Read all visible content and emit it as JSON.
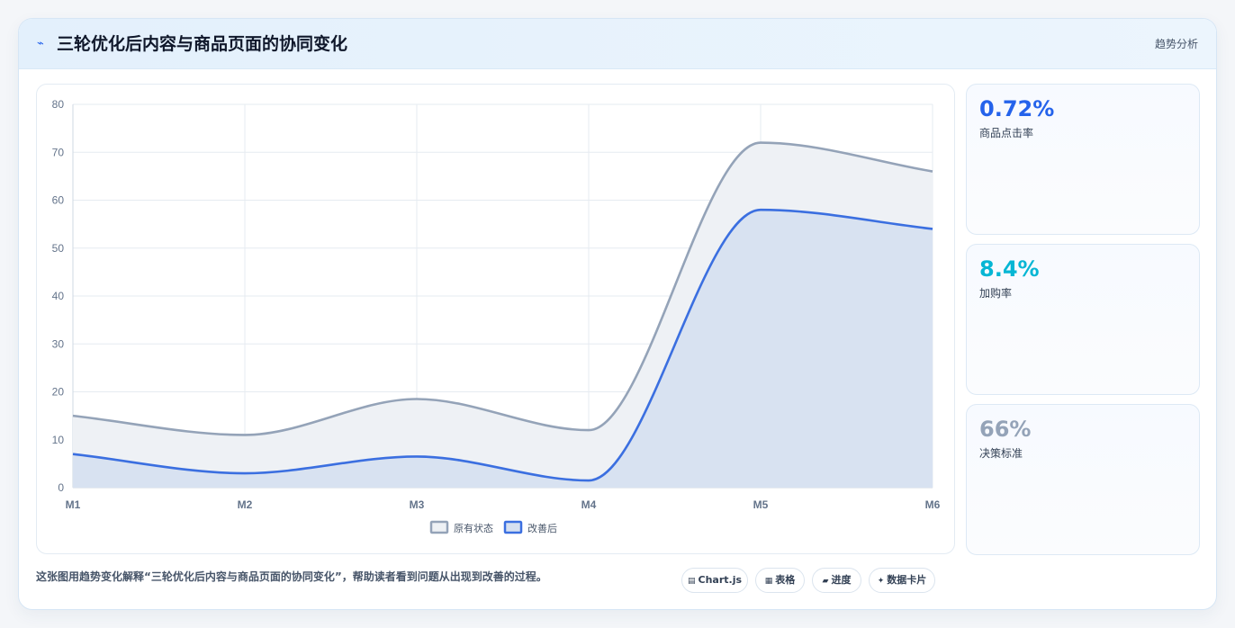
{
  "header": {
    "title": "三轮优化后内容与商品页面的协同变化",
    "link": "趋势分析",
    "icon": "trend-icon"
  },
  "chart_data": {
    "type": "area",
    "categories": [
      "M1",
      "M2",
      "M3",
      "M4",
      "M5",
      "M6"
    ],
    "ylim": [
      0,
      80
    ],
    "yticks": [
      "0",
      "10",
      "20",
      "30",
      "40",
      "50",
      "60",
      "70",
      "80"
    ],
    "grid": true,
    "legend_position": "bottom",
    "series": [
      {
        "name": "原有状态",
        "values": [
          15,
          11,
          18.5,
          12,
          72,
          66
        ],
        "color": "#94a3b8",
        "fill": "#eef1f5"
      },
      {
        "name": "改善后",
        "values": [
          7,
          3,
          6.5,
          1.5,
          58,
          54
        ],
        "color": "#3b6fe0",
        "fill": "#d6e0f0"
      }
    ]
  },
  "stats": [
    {
      "value": "0.72%",
      "label": "商品点击率",
      "color": "#2563eb"
    },
    {
      "value": "8.4%",
      "label": "加购率",
      "color": "#06b6d4"
    },
    {
      "value": "66%",
      "label": "决策标准",
      "color": "#94a3b8"
    }
  ],
  "footer": {
    "note": "这张图用趋势变化解释“三轮优化后内容与商品页面的协同变化”，帮助读者看到问题从出现到改善的过程。",
    "chips": [
      {
        "label": "Chart.js",
        "icon": "chart-icon",
        "glyph": "▤"
      },
      {
        "label": "表格",
        "icon": "table-icon",
        "glyph": "▦"
      },
      {
        "label": "进度",
        "icon": "progress-icon",
        "glyph": "▰"
      },
      {
        "label": "数据卡片",
        "icon": "card-icon",
        "glyph": "✦"
      }
    ]
  }
}
